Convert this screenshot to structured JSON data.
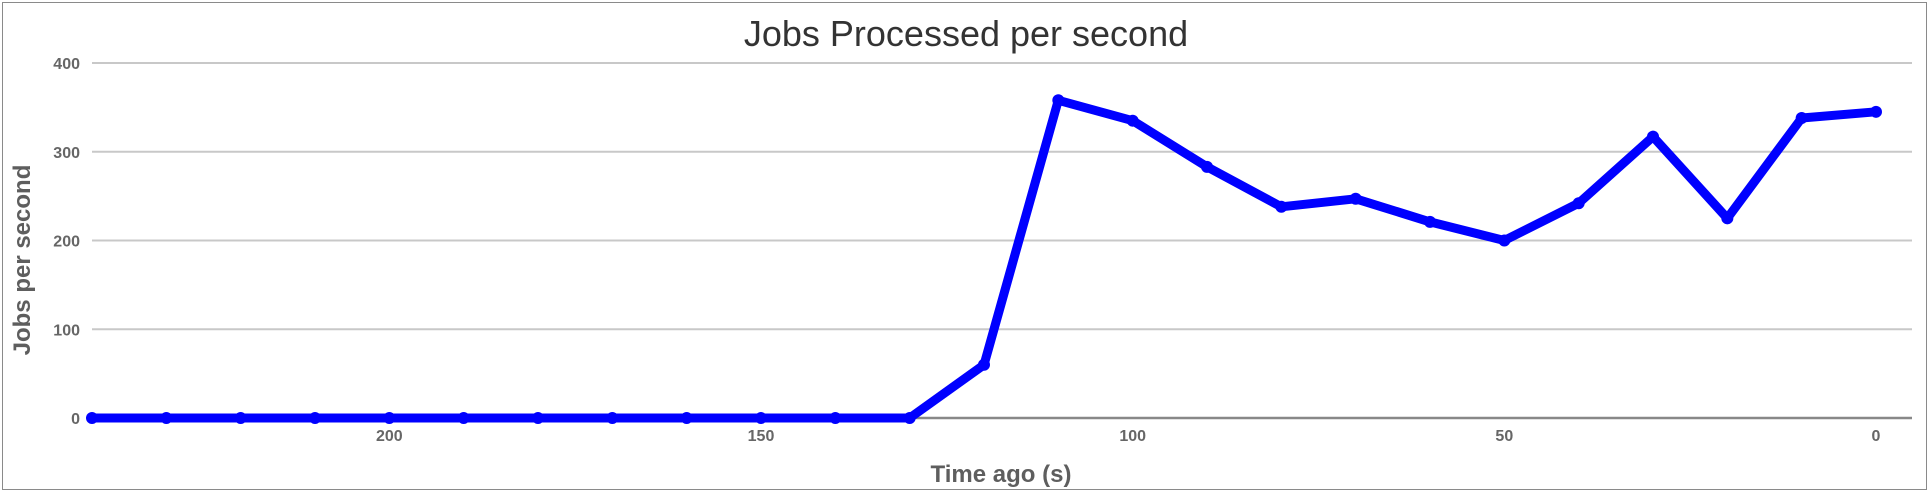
{
  "chart_data": {
    "type": "line",
    "title": "Jobs Processed per second",
    "xlabel": "Time ago (s)",
    "ylabel": "Jobs per second",
    "xlim": [
      240,
      0
    ],
    "ylim": [
      0,
      400
    ],
    "x_ticks": [
      200,
      150,
      100,
      50,
      0
    ],
    "y_ticks": [
      0,
      100,
      200,
      300,
      400
    ],
    "grid": true,
    "colors": {
      "line": "#0000ff",
      "grid": "#c8c8c8",
      "baseline": "#888888"
    },
    "series": [
      {
        "x": [
          240,
          230,
          220,
          210,
          200,
          190,
          180,
          170,
          160,
          150,
          140,
          130,
          120,
          110,
          100,
          90,
          80,
          70,
          60,
          50,
          40,
          30,
          20,
          10,
          0
        ],
        "values": [
          0,
          0,
          0,
          0,
          0,
          0,
          0,
          0,
          0,
          0,
          0,
          0,
          60,
          358,
          335,
          283,
          238,
          247,
          221,
          200,
          242,
          317,
          225,
          338,
          345
        ]
      }
    ]
  }
}
